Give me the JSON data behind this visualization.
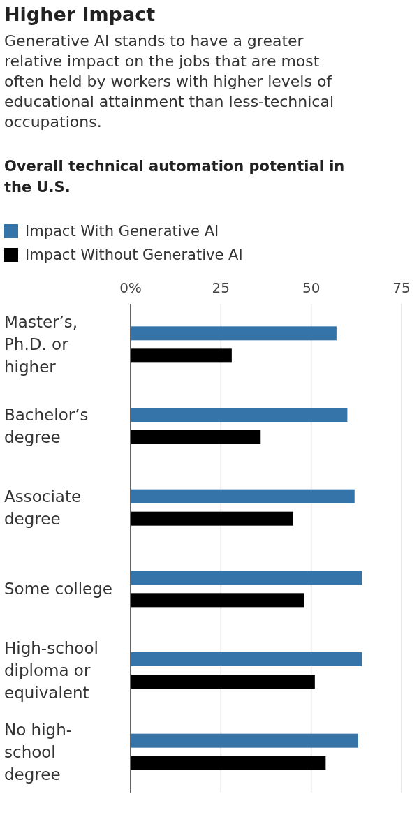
{
  "chart_data": {
    "type": "bar",
    "orientation": "horizontal",
    "title": "Higher Impact",
    "subtitle": "Generative AI stands to have a greater relative impact on the jobs that are most often held by workers with higher levels of educational attainment than less-technical occupations.",
    "annotations": [
      "Overall technical automation potential in the U.S."
    ],
    "categories": [
      "Master’s, Ph.D. or higher",
      "Bachelor’s degree",
      "Associate degree",
      "Some college",
      "High-school diploma or equivalent",
      "No high-school degree"
    ],
    "series": [
      {
        "name": "Impact With Generative AI",
        "color": "#3574a8",
        "values": [
          57,
          60,
          62,
          64,
          64,
          63
        ]
      },
      {
        "name": "Impact Without Generative AI",
        "color": "#000000",
        "values": [
          28,
          36,
          45,
          48,
          51,
          54
        ]
      }
    ],
    "xlim": [
      0,
      75
    ],
    "xticks": [
      {
        "value": 0,
        "label": "0%"
      },
      25,
      50,
      75
    ],
    "grid": "x",
    "legend": "top left"
  }
}
